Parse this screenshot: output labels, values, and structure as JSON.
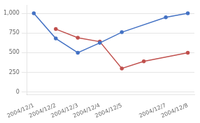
{
  "chart_data": {
    "type": "line",
    "series": [
      {
        "color": "#4472c4",
        "x": [
          0,
          1,
          2,
          3,
          4,
          6,
          7
        ],
        "values": [
          1000,
          680,
          500,
          625,
          760,
          950,
          1000
        ]
      },
      {
        "color": "#c0504d",
        "x": [
          1,
          2,
          3,
          4,
          5,
          7
        ],
        "values": [
          800,
          690,
          640,
          300,
          390,
          500
        ]
      }
    ],
    "xlim": [
      -0.3,
      7.3
    ],
    "xticks": [
      {
        "value": 0,
        "label": "2004/12/1"
      },
      {
        "value": 1,
        "label": "2004/12/2"
      },
      {
        "value": 2,
        "label": "2004/12/3"
      },
      {
        "value": 3,
        "label": "2004/12/4"
      },
      {
        "value": 4,
        "label": "2004/12/5"
      },
      {
        "value": 6,
        "label": "2004/12/7"
      },
      {
        "value": 7,
        "label": "2004/12/8"
      }
    ],
    "ylim": [
      -30,
      1100
    ],
    "yticks": [
      0,
      250,
      500,
      750,
      {
        "value": 1000,
        "label": "1,000"
      }
    ],
    "marker": "o",
    "grid": "y"
  }
}
